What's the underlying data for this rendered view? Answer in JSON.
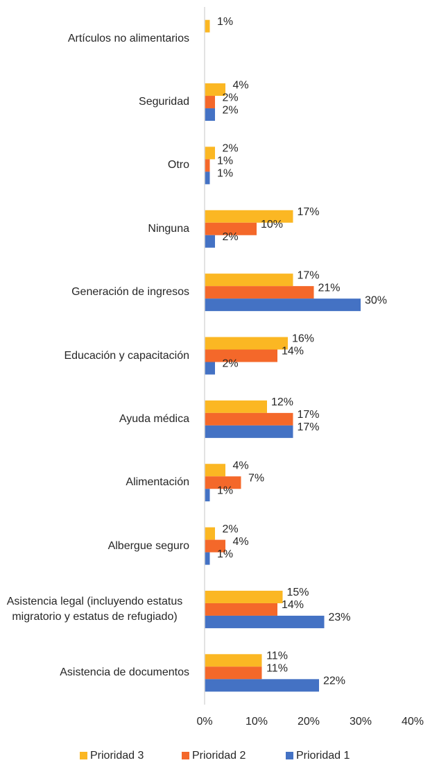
{
  "chart_data": {
    "type": "bar",
    "orientation": "horizontal",
    "categories": [
      "Artículos no alimentarios",
      "Seguridad",
      "Otro",
      "Ninguna",
      "Generación de ingresos",
      "Educación y capacitación",
      "Ayuda médica",
      "Alimentación",
      "Albergue seguro",
      "Asistencia legal (incluyendo estatus migratorio y estatus de refugiado)",
      "Asistencia de documentos"
    ],
    "series": [
      {
        "name": "Prioridad 3",
        "color": "#fbb723",
        "values": [
          1,
          4,
          2,
          17,
          17,
          16,
          12,
          4,
          2,
          15,
          11
        ],
        "value_labels": [
          "1%",
          "4%",
          "2%",
          "17%",
          "17%",
          "16%",
          "12%",
          "4%",
          "2%",
          "15%",
          "11%"
        ]
      },
      {
        "name": "Prioridad 2",
        "color": "#f4682a",
        "values": [
          null,
          2,
          1,
          10,
          21,
          14,
          17,
          7,
          4,
          14,
          11
        ],
        "value_labels": [
          null,
          "2%",
          "1%",
          "10%",
          "21%",
          "14%",
          "17%",
          "7%",
          "4%",
          "14%",
          "11%"
        ]
      },
      {
        "name": "Prioridad 1",
        "color": "#4472c4",
        "values": [
          null,
          2,
          1,
          2,
          30,
          2,
          17,
          1,
          1,
          23,
          22
        ],
        "value_labels": [
          null,
          "2%",
          "1%",
          "2%",
          "30%",
          "2%",
          "17%",
          "1%",
          "1%",
          "23%",
          "22%"
        ]
      }
    ],
    "xlim": [
      0,
      40
    ],
    "xticks": [
      {
        "value": 0,
        "label": "0%"
      },
      {
        "value": 10,
        "label": "10%"
      },
      {
        "value": 20,
        "label": "20%"
      },
      {
        "value": 30,
        "label": "30%"
      },
      {
        "value": 40,
        "label": "40%"
      }
    ],
    "grid": false,
    "legend": "bottom"
  }
}
